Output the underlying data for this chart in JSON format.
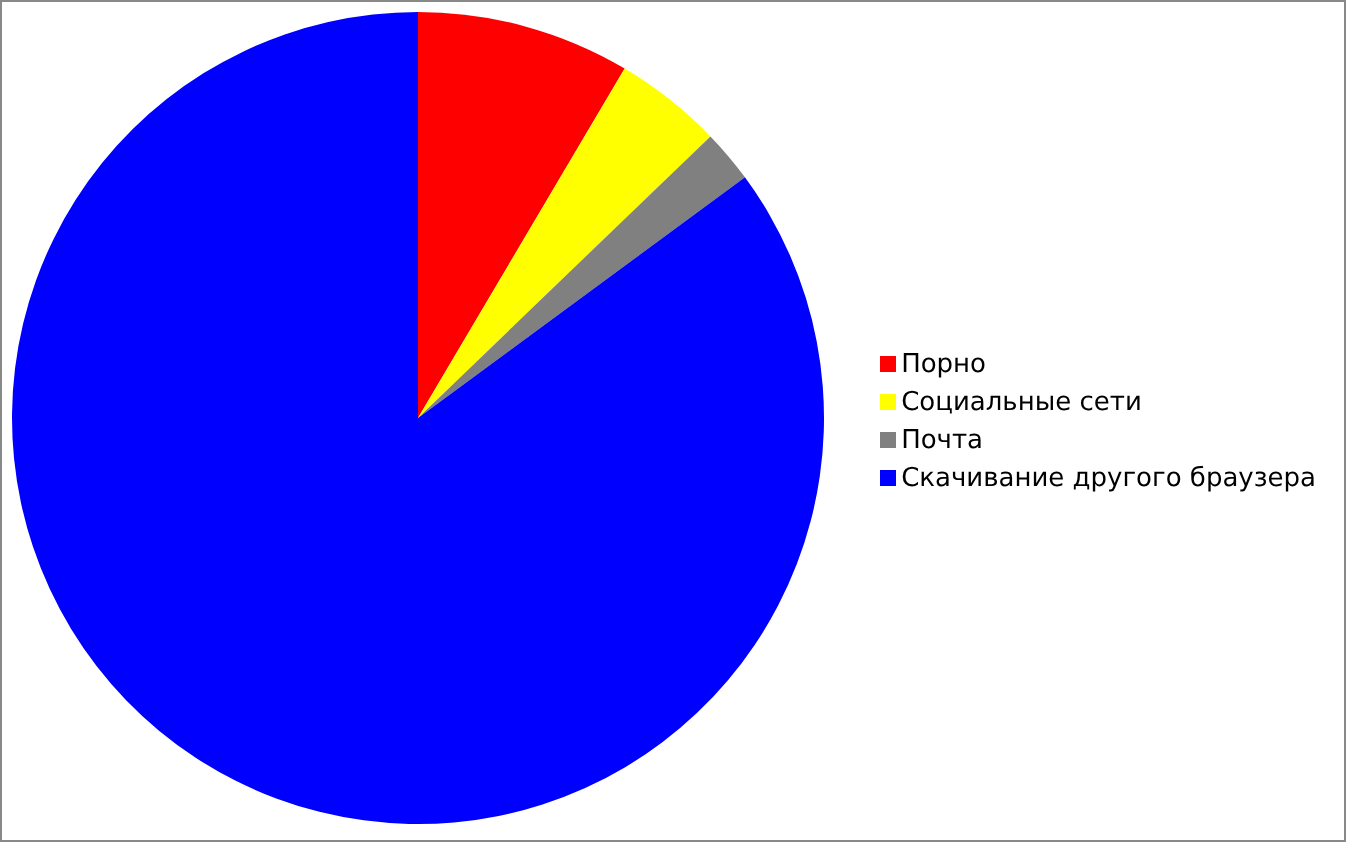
{
  "chart_data": {
    "type": "pie",
    "categories": [
      "Порно",
      "Социальные сети",
      "Почта",
      "Скачивание другого браузера"
    ],
    "values": [
      8.5,
      4.3,
      2.1,
      85.1
    ],
    "colors": [
      "#ff0000",
      "#ffff00",
      "#808080",
      "#0000ff"
    ],
    "legend": "right"
  }
}
